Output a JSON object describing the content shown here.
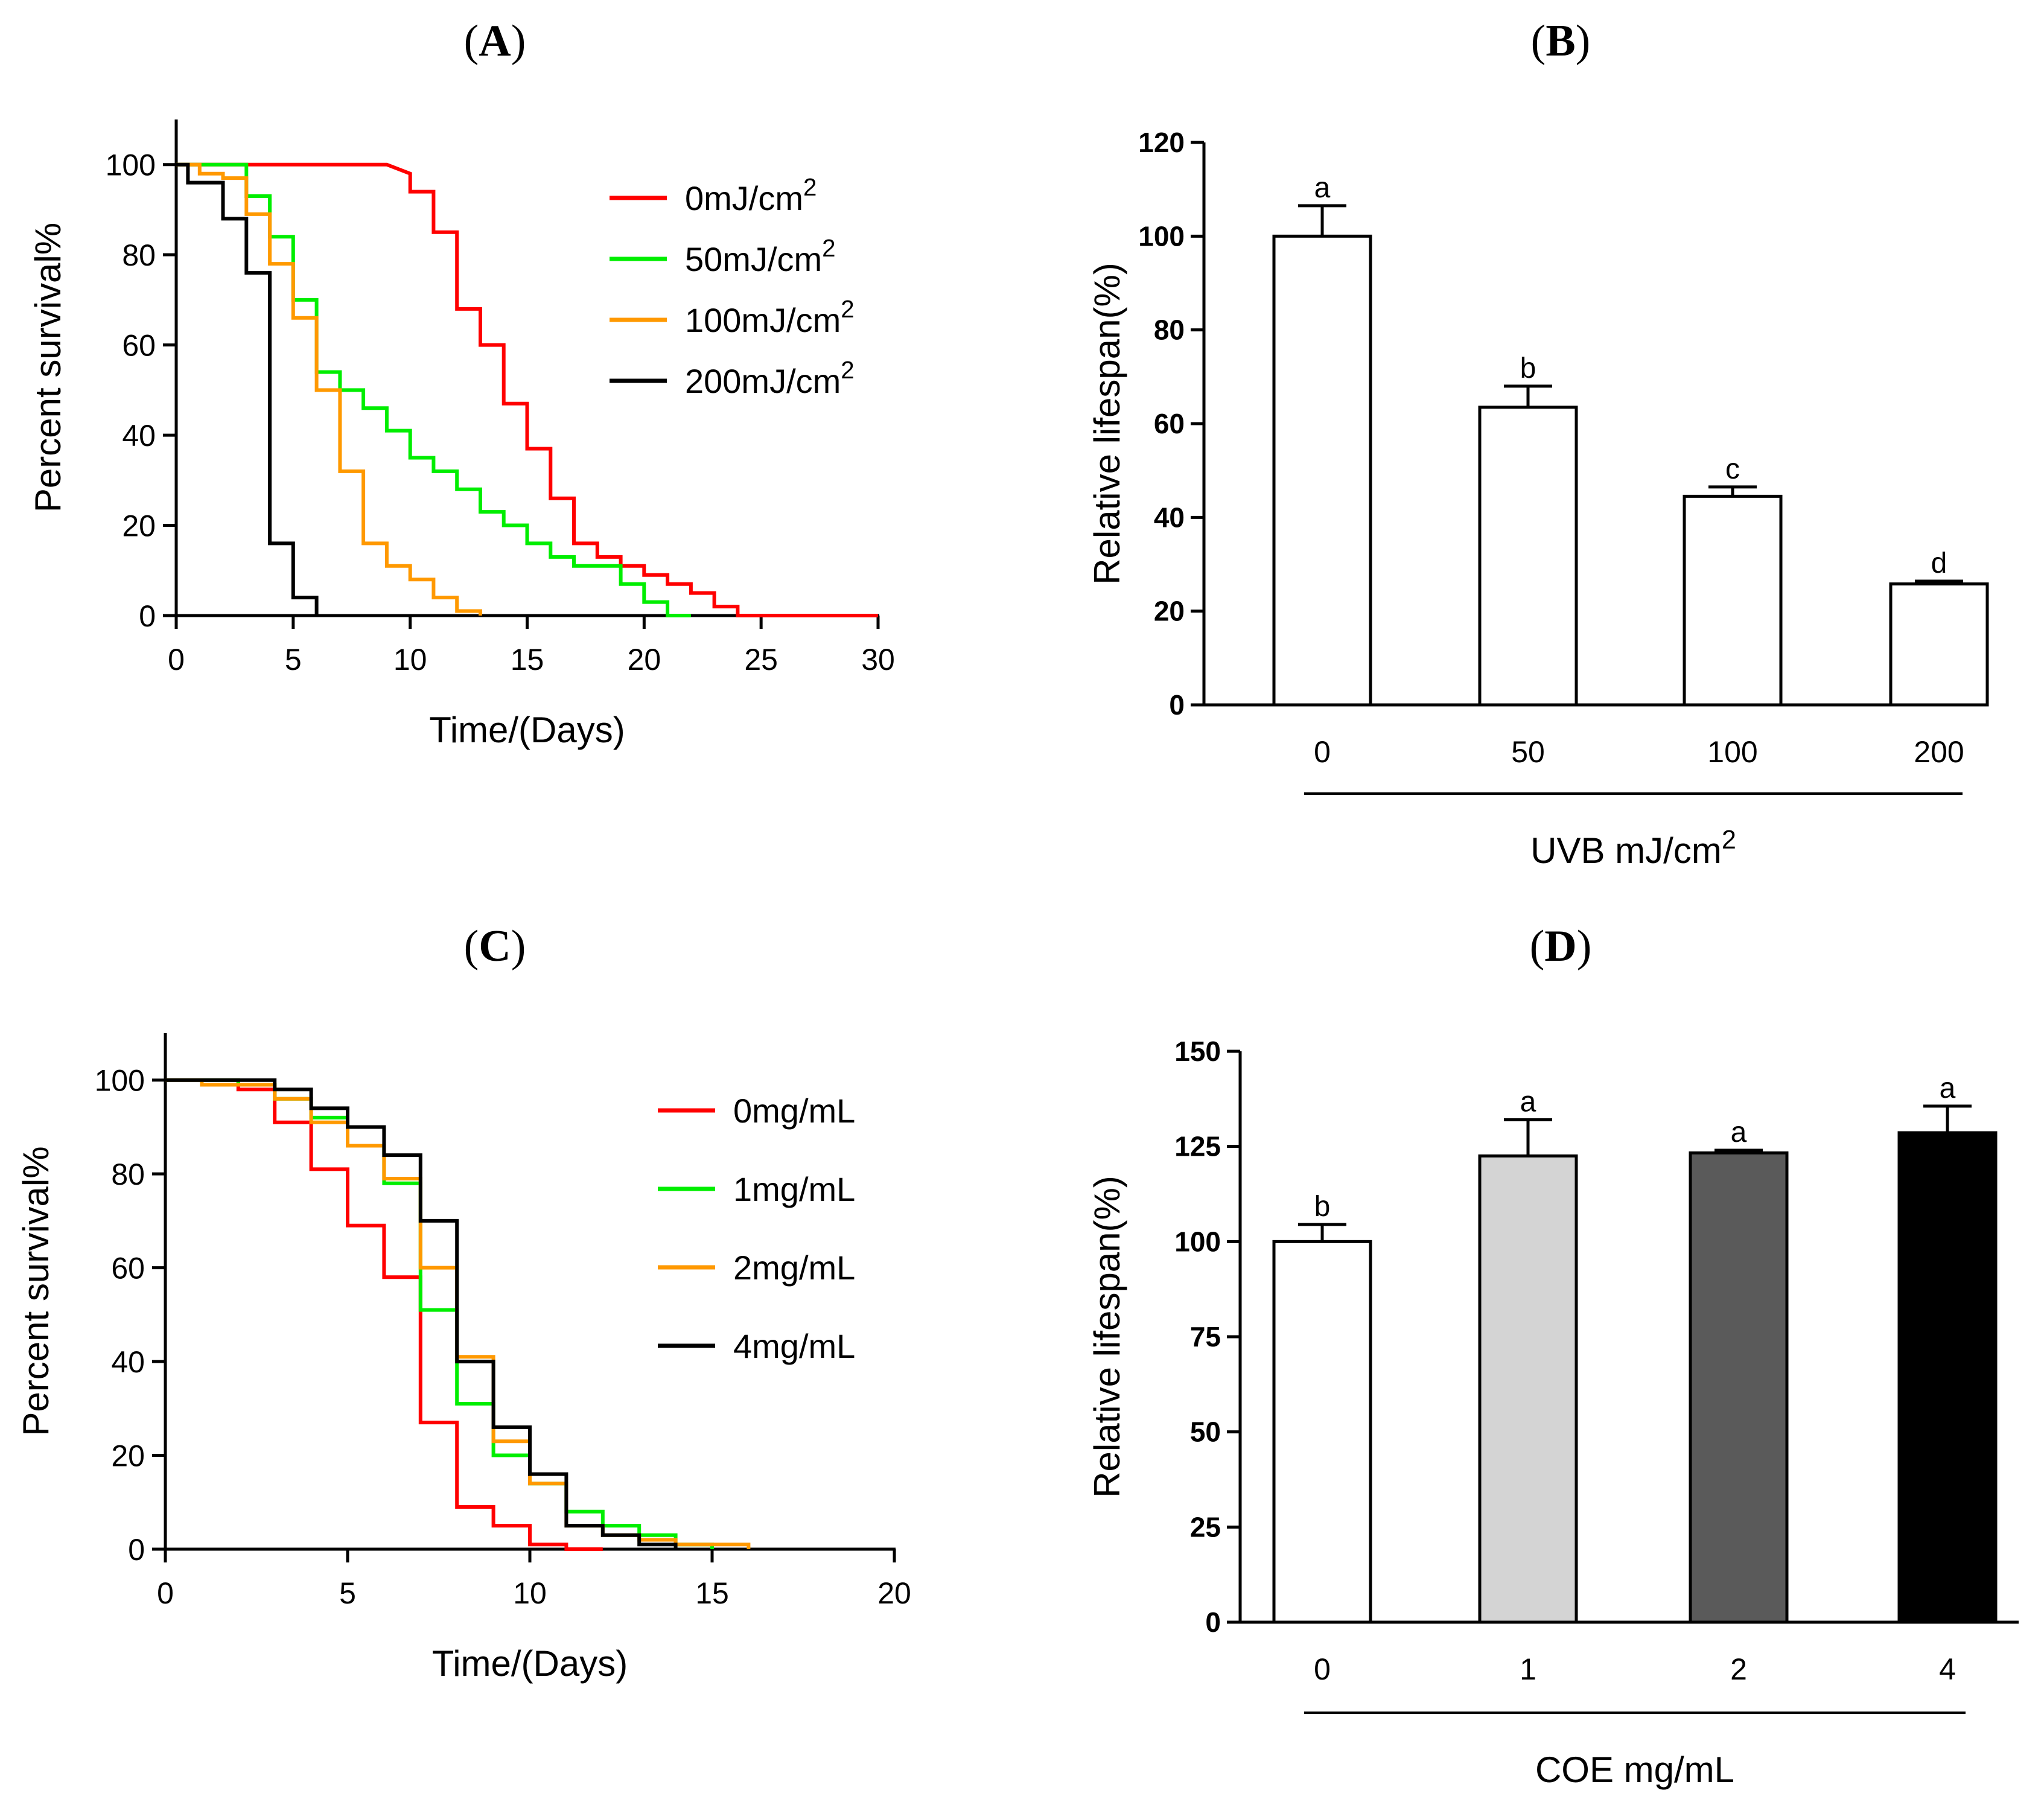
{
  "panels": {
    "A": "A",
    "B": "B",
    "C": "C",
    "D": "D"
  },
  "chart_data": [
    {
      "id": "A",
      "type": "line",
      "step": true,
      "title": "",
      "xlabel": "Time/(Days)",
      "ylabel": "Percent survival%",
      "xlim": [
        0,
        30
      ],
      "ylim": [
        0,
        110
      ],
      "xticks": [
        0,
        5,
        10,
        15,
        20,
        25,
        30
      ],
      "yticks": [
        0,
        20,
        40,
        60,
        80,
        100
      ],
      "legend_position": "top-right",
      "series": [
        {
          "name": "0mJ/cm",
          "name_sup": "2",
          "color": "#ff0000",
          "points": [
            [
              0,
              100
            ],
            [
              9,
              100
            ],
            [
              9,
              100
            ],
            [
              10,
              98
            ],
            [
              10,
              94
            ],
            [
              11,
              94
            ],
            [
              11,
              85
            ],
            [
              12,
              85
            ],
            [
              12,
              68
            ],
            [
              13,
              68
            ],
            [
              13,
              60
            ],
            [
              14,
              60
            ],
            [
              14,
              47
            ],
            [
              15,
              47
            ],
            [
              15,
              37
            ],
            [
              16,
              37
            ],
            [
              16,
              26
            ],
            [
              17,
              26
            ],
            [
              17,
              16
            ],
            [
              18,
              16
            ],
            [
              18,
              13
            ],
            [
              19,
              13
            ],
            [
              19,
              11
            ],
            [
              20,
              11
            ],
            [
              20,
              9
            ],
            [
              21,
              9
            ],
            [
              21,
              7
            ],
            [
              22,
              7
            ],
            [
              22,
              5
            ],
            [
              23,
              5
            ],
            [
              23,
              2
            ],
            [
              24,
              2
            ],
            [
              24,
              0
            ],
            [
              30,
              0
            ]
          ]
        },
        {
          "name": "50mJ/cm",
          "name_sup": "2",
          "color": "#00ee00",
          "points": [
            [
              0,
              100
            ],
            [
              3,
              100
            ],
            [
              3,
              93
            ],
            [
              4,
              93
            ],
            [
              4,
              84
            ],
            [
              5,
              84
            ],
            [
              5,
              70
            ],
            [
              6,
              70
            ],
            [
              6,
              54
            ],
            [
              7,
              54
            ],
            [
              7,
              50
            ],
            [
              8,
              50
            ],
            [
              8,
              46
            ],
            [
              9,
              46
            ],
            [
              9,
              41
            ],
            [
              10,
              41
            ],
            [
              10,
              35
            ],
            [
              11,
              35
            ],
            [
              11,
              32
            ],
            [
              12,
              32
            ],
            [
              12,
              28
            ],
            [
              13,
              28
            ],
            [
              13,
              23
            ],
            [
              14,
              23
            ],
            [
              14,
              20
            ],
            [
              15,
              20
            ],
            [
              15,
              16
            ],
            [
              16,
              16
            ],
            [
              16,
              13
            ],
            [
              17,
              13
            ],
            [
              17,
              11
            ],
            [
              19,
              11
            ],
            [
              19,
              7
            ],
            [
              20,
              7
            ],
            [
              20,
              3
            ],
            [
              21,
              3
            ],
            [
              21,
              0
            ],
            [
              22,
              0
            ]
          ]
        },
        {
          "name": "100mJ/cm",
          "name_sup": "2",
          "color": "#ff9900",
          "points": [
            [
              0,
              100
            ],
            [
              1,
              100
            ],
            [
              1,
              98
            ],
            [
              2,
              98
            ],
            [
              2,
              97
            ],
            [
              3,
              97
            ],
            [
              3,
              89
            ],
            [
              4,
              89
            ],
            [
              4,
              78
            ],
            [
              5,
              78
            ],
            [
              5,
              66
            ],
            [
              6,
              66
            ],
            [
              6,
              50
            ],
            [
              7,
              50
            ],
            [
              7,
              32
            ],
            [
              8,
              32
            ],
            [
              8,
              16
            ],
            [
              9,
              16
            ],
            [
              9,
              11
            ],
            [
              10,
              11
            ],
            [
              10,
              8
            ],
            [
              11,
              8
            ],
            [
              11,
              4
            ],
            [
              12,
              4
            ],
            [
              12,
              1
            ],
            [
              13,
              1
            ],
            [
              13,
              0
            ]
          ]
        },
        {
          "name": "200mJ/cm",
          "name_sup": "2",
          "color": "#000000",
          "points": [
            [
              0,
              100
            ],
            [
              0.5,
              100
            ],
            [
              0.5,
              96
            ],
            [
              2,
              96
            ],
            [
              2,
              88
            ],
            [
              3,
              88
            ],
            [
              3,
              76
            ],
            [
              4,
              76
            ],
            [
              4,
              16
            ],
            [
              5,
              16
            ],
            [
              5,
              4
            ],
            [
              6,
              4
            ],
            [
              6,
              0
            ]
          ]
        }
      ]
    },
    {
      "id": "B",
      "type": "bar",
      "title": "",
      "xlabel": "UVB mJ/cm",
      "xlabel_sup": "2",
      "ylabel": "Relative lifespan(%)",
      "ylim": [
        0,
        120
      ],
      "yticks": [
        0,
        20,
        40,
        60,
        80,
        100,
        120
      ],
      "categories": [
        "0",
        "50",
        "100",
        "200"
      ],
      "values": [
        100,
        63.5,
        44.5,
        25.8
      ],
      "errors": [
        6.5,
        4.5,
        2,
        0.6
      ],
      "letters": [
        "a",
        "b",
        "c",
        "d"
      ],
      "fills": [
        "#ffffff",
        "#ffffff",
        "#ffffff",
        "#ffffff"
      ]
    },
    {
      "id": "C",
      "type": "line",
      "step": true,
      "title": "",
      "xlabel": "Time/(Days)",
      "ylabel": "Percent survival%",
      "xlim": [
        0,
        20
      ],
      "ylim": [
        0,
        110
      ],
      "xticks": [
        0,
        5,
        10,
        15,
        20
      ],
      "yticks": [
        0,
        20,
        40,
        60,
        80,
        100
      ],
      "legend_position": "top-right",
      "series": [
        {
          "name": "0mg/mL",
          "color": "#ff0000",
          "points": [
            [
              0,
              100
            ],
            [
              2,
              100
            ],
            [
              2,
              98
            ],
            [
              3,
              98
            ],
            [
              3,
              91
            ],
            [
              4,
              91
            ],
            [
              4,
              81
            ],
            [
              5,
              81
            ],
            [
              5,
              69
            ],
            [
              6,
              69
            ],
            [
              6,
              58
            ],
            [
              7,
              58
            ],
            [
              7,
              27
            ],
            [
              8,
              27
            ],
            [
              8,
              9
            ],
            [
              9,
              9
            ],
            [
              9,
              5
            ],
            [
              10,
              5
            ],
            [
              10,
              1
            ],
            [
              11,
              1
            ],
            [
              11,
              0
            ],
            [
              12,
              0
            ]
          ]
        },
        {
          "name": "1mg/mL",
          "color": "#00ee00",
          "points": [
            [
              0,
              100
            ],
            [
              2,
              100
            ],
            [
              2,
              99
            ],
            [
              3,
              99
            ],
            [
              3,
              96
            ],
            [
              4,
              96
            ],
            [
              4,
              92
            ],
            [
              5,
              92
            ],
            [
              5,
              86
            ],
            [
              6,
              86
            ],
            [
              6,
              78
            ],
            [
              7,
              78
            ],
            [
              7,
              51
            ],
            [
              8,
              51
            ],
            [
              8,
              31
            ],
            [
              9,
              31
            ],
            [
              9,
              20
            ],
            [
              10,
              20
            ],
            [
              10,
              14
            ],
            [
              11,
              14
            ],
            [
              11,
              8
            ],
            [
              12,
              8
            ],
            [
              12,
              5
            ],
            [
              13,
              5
            ],
            [
              13,
              3
            ],
            [
              14,
              3
            ],
            [
              14,
              1
            ],
            [
              15,
              1
            ],
            [
              15,
              0
            ]
          ]
        },
        {
          "name": "2mg/mL",
          "color": "#ff9900",
          "points": [
            [
              0,
              100
            ],
            [
              1,
              100
            ],
            [
              1,
              99
            ],
            [
              3,
              99
            ],
            [
              3,
              96
            ],
            [
              4,
              96
            ],
            [
              4,
              91
            ],
            [
              5,
              91
            ],
            [
              5,
              86
            ],
            [
              6,
              86
            ],
            [
              6,
              79
            ],
            [
              7,
              79
            ],
            [
              7,
              60
            ],
            [
              8,
              60
            ],
            [
              8,
              41
            ],
            [
              9,
              41
            ],
            [
              9,
              23
            ],
            [
              10,
              23
            ],
            [
              10,
              14
            ],
            [
              11,
              14
            ],
            [
              11,
              5
            ],
            [
              12,
              5
            ],
            [
              12,
              3
            ],
            [
              13,
              3
            ],
            [
              13,
              2
            ],
            [
              14,
              2
            ],
            [
              14,
              1
            ],
            [
              16,
              1
            ],
            [
              16,
              0
            ]
          ]
        },
        {
          "name": "4mg/mL",
          "color": "#000000",
          "points": [
            [
              0,
              100
            ],
            [
              3,
              100
            ],
            [
              3,
              98
            ],
            [
              4,
              98
            ],
            [
              4,
              94
            ],
            [
              5,
              94
            ],
            [
              5,
              90
            ],
            [
              6,
              90
            ],
            [
              6,
              84
            ],
            [
              7,
              84
            ],
            [
              7,
              70
            ],
            [
              8,
              70
            ],
            [
              8,
              40
            ],
            [
              9,
              40
            ],
            [
              9,
              26
            ],
            [
              10,
              26
            ],
            [
              10,
              16
            ],
            [
              11,
              16
            ],
            [
              11,
              5
            ],
            [
              12,
              5
            ],
            [
              12,
              3
            ],
            [
              13,
              3
            ],
            [
              13,
              1
            ],
            [
              14,
              1
            ],
            [
              14,
              0
            ]
          ]
        }
      ]
    },
    {
      "id": "D",
      "type": "bar",
      "title": "",
      "xlabel": "COE    mg/mL",
      "ylabel": "Relative lifespan(%)",
      "ylim": [
        0,
        150
      ],
      "yticks": [
        0,
        25,
        50,
        75,
        100,
        125,
        150
      ],
      "categories": [
        "0",
        "1",
        "2",
        "4"
      ],
      "values": [
        100,
        122.5,
        123.3,
        128.6
      ],
      "errors": [
        4.5,
        9.5,
        0.7,
        7
      ],
      "letters": [
        "b",
        "a",
        "a",
        "a"
      ],
      "fills": [
        "#ffffff",
        "#d4d4d4",
        "#5a5a5a",
        "#000000"
      ]
    }
  ]
}
